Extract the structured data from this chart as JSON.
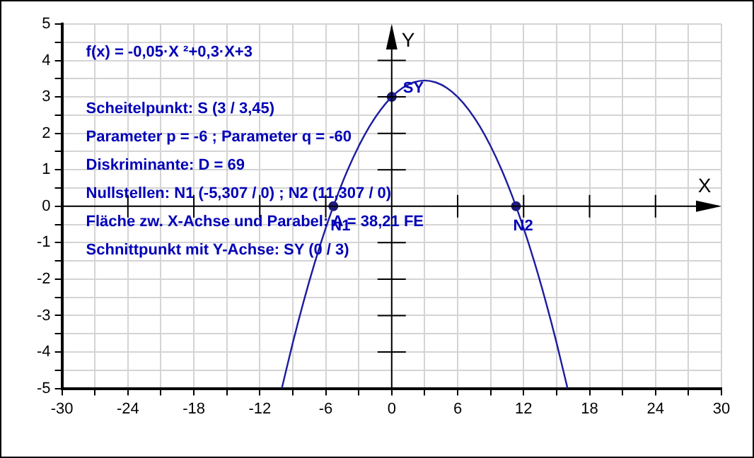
{
  "chart_data": {
    "type": "line",
    "xlabel": "X",
    "ylabel": "Y",
    "xlim": [
      -30,
      30
    ],
    "ylim": [
      -5,
      5
    ],
    "xticks": [
      -30,
      {
        "value": -27,
        "label": null
      },
      -24,
      {
        "value": -21,
        "label": null
      },
      -18,
      {
        "value": -15,
        "label": null
      },
      -12,
      {
        "value": -9,
        "label": null
      },
      -6,
      {
        "value": -3,
        "label": null
      },
      0,
      {
        "value": 3,
        "label": null
      },
      6,
      {
        "value": 9,
        "label": null
      },
      12,
      {
        "value": 15,
        "label": null
      },
      18,
      {
        "value": 21,
        "label": null
      },
      24,
      {
        "value": 27,
        "label": null
      },
      30
    ],
    "yticks": [
      -5,
      {
        "value": -4.5,
        "label": null
      },
      -4,
      {
        "value": -3.5,
        "label": null
      },
      -3,
      {
        "value": -2.5,
        "label": null
      },
      -2,
      {
        "value": -1.5,
        "label": null
      },
      -1,
      {
        "value": -0.5,
        "label": null
      },
      0,
      {
        "value": 0.5,
        "label": null
      },
      1,
      {
        "value": 1.5,
        "label": null
      },
      2,
      {
        "value": 2.5,
        "label": null
      },
      3,
      {
        "value": 3.5,
        "label": null
      },
      4,
      {
        "value": 4.5,
        "label": null
      },
      5
    ],
    "grid": true,
    "series": [
      {
        "type": "line",
        "color": "#1c1ca0",
        "marker": "none",
        "x": [
          -10,
          -9,
          -8,
          -7,
          -6,
          -5,
          -4,
          -3,
          -2,
          -1,
          0,
          1,
          2,
          3,
          4,
          5,
          6,
          7,
          8,
          9,
          10,
          11,
          12,
          13,
          14,
          15,
          16
        ],
        "values": [
          -5,
          -3.75,
          -2.6,
          -1.55,
          -0.6,
          0.25,
          1,
          1.65,
          2.2,
          2.65,
          3,
          3.25,
          3.4,
          3.45,
          3.4,
          3.25,
          3,
          2.65,
          2.2,
          1.65,
          1,
          0.25,
          -0.6,
          -1.55,
          -2.6,
          -3.75,
          -5
        ]
      },
      {
        "type": "scatter",
        "color": "#1c1c70",
        "marker": "circle",
        "x": [
          -5.307,
          11.307,
          0
        ],
        "values": [
          0,
          0,
          3
        ]
      }
    ],
    "annotations": [
      "f(x) = -0,05·X ²+0,3·X+3",
      "Scheitelpunkt: S (3 / 3,45)",
      "Parameter p = -6 ; Parameter q = -60",
      "Diskriminante: D = 69",
      "Nullstellen: N1 (-5,307 / 0) ; N2 (11,307 / 0)",
      "Fläche zw. X-Achse und Parabel: A = 38,21 FE",
      "Schnittpunkt mit Y-Achse: SY (0 / 3)",
      {
        "text": "N1",
        "x": -5.307,
        "y": 0
      },
      {
        "text": "N2",
        "x": 11.307,
        "y": 0
      },
      {
        "text": "SY",
        "x": 0,
        "y": 3
      }
    ]
  }
}
